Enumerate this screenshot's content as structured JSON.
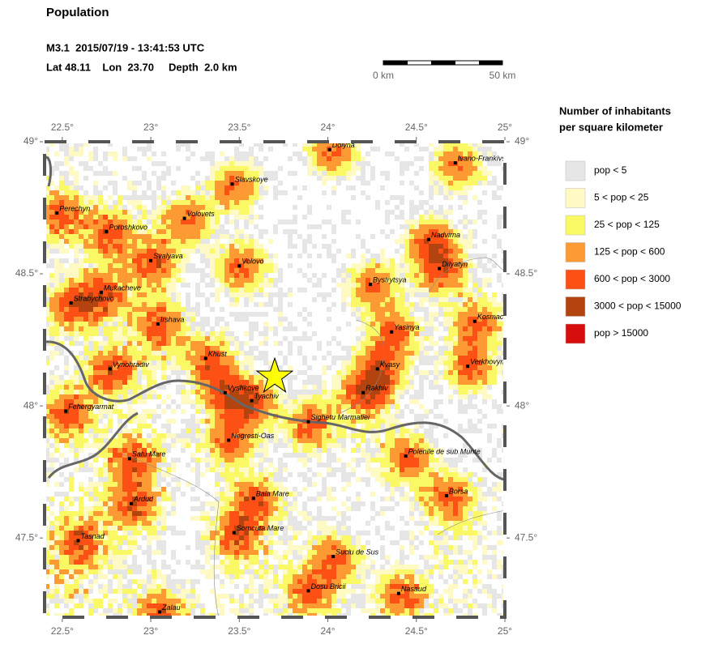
{
  "header": {
    "title": "Population",
    "event_line": "M3.1  2015/07/19 - 13:41:53 UTC",
    "location_line": "Lat 48.11    Lon  23.70     Depth  2.0 km"
  },
  "scale_bar": {
    "labels": [
      "0 km",
      "50 km"
    ]
  },
  "legend": {
    "title_lines": [
      "Number of inhabitants",
      "per square kilometer"
    ],
    "items": [
      {
        "label": "pop < 5",
        "color": "#e6e6e6"
      },
      {
        "label": "5 < pop < 25",
        "color": "#fffac4"
      },
      {
        "label": "25 < pop < 125",
        "color": "#fbf865"
      },
      {
        "label": "125 < pop < 600",
        "color": "#fd9a34"
      },
      {
        "label": "600 < pop < 3000",
        "color": "#fc5014"
      },
      {
        "label": "3000 < pop < 15000",
        "color": "#b4440f"
      },
      {
        "label": "pop > 15000",
        "color": "#d70e0e"
      }
    ]
  },
  "map": {
    "xlim": [
      22.4,
      25.0
    ],
    "ylim": [
      47.2,
      49.0
    ],
    "xticks": [
      {
        "value": 22.5,
        "label": "22.5°"
      },
      {
        "value": 23,
        "label": "23°"
      },
      {
        "value": 23.5,
        "label": "23.5°"
      },
      {
        "value": 24,
        "label": "24°"
      },
      {
        "value": 24.5,
        "label": "24.5°"
      },
      {
        "value": 25,
        "label": "25°"
      }
    ],
    "yticks": [
      {
        "value": 47.5,
        "label": "47.5°"
      },
      {
        "value": 48,
        "label": "48°"
      },
      {
        "value": 48.5,
        "label": "48.5°"
      },
      {
        "value": 49,
        "label": "49°"
      }
    ],
    "epicenter": {
      "lon": 23.7,
      "lat": 48.11
    },
    "cities": [
      {
        "name": "Dolyna",
        "lon": 24.01,
        "lat": 48.97
      },
      {
        "name": "Ivano-Frankivsk",
        "lon": 24.72,
        "lat": 48.92
      },
      {
        "name": "Slavskoye",
        "lon": 23.46,
        "lat": 48.84
      },
      {
        "name": "Perechyn",
        "lon": 22.47,
        "lat": 48.73
      },
      {
        "name": "Poroshkovo",
        "lon": 22.75,
        "lat": 48.66
      },
      {
        "name": "Volovets",
        "lon": 23.19,
        "lat": 48.71
      },
      {
        "name": "Svalyava",
        "lon": 23.0,
        "lat": 48.55
      },
      {
        "name": "Volovo",
        "lon": 23.5,
        "lat": 48.53
      },
      {
        "name": "Nadvirna",
        "lon": 24.57,
        "lat": 48.63
      },
      {
        "name": "Dilyatyn",
        "lon": 24.63,
        "lat": 48.52
      },
      {
        "name": "Mukacheve",
        "lon": 22.72,
        "lat": 48.43
      },
      {
        "name": "Bystrytsya",
        "lon": 24.24,
        "lat": 48.46
      },
      {
        "name": "Strabychovo",
        "lon": 22.55,
        "lat": 48.39
      },
      {
        "name": "Kosmach",
        "lon": 24.83,
        "lat": 48.32
      },
      {
        "name": "Irshava",
        "lon": 23.04,
        "lat": 48.31
      },
      {
        "name": "Yasinya",
        "lon": 24.36,
        "lat": 48.28
      },
      {
        "name": "Khust",
        "lon": 23.31,
        "lat": 48.18
      },
      {
        "name": "Verkhovyna",
        "lon": 24.79,
        "lat": 48.15
      },
      {
        "name": "Vynohradiv",
        "lon": 22.77,
        "lat": 48.14
      },
      {
        "name": "Kvasy",
        "lon": 24.28,
        "lat": 48.14
      },
      {
        "name": "Rakhiv",
        "lon": 24.2,
        "lat": 48.05
      },
      {
        "name": "Vyshkove",
        "lon": 23.42,
        "lat": 48.05
      },
      {
        "name": "Tyachiv",
        "lon": 23.57,
        "lat": 48.02
      },
      {
        "name": "Fehergyarmat",
        "lon": 22.52,
        "lat": 47.98
      },
      {
        "name": "Sighetu Marmatiei",
        "lon": 23.89,
        "lat": 47.94
      },
      {
        "name": "Negresti-Oas",
        "lon": 23.44,
        "lat": 47.87
      },
      {
        "name": "Polenile de sub Munte",
        "lon": 24.44,
        "lat": 47.81
      },
      {
        "name": "Satu Mare",
        "lon": 22.88,
        "lat": 47.8
      },
      {
        "name": "Baia Mare",
        "lon": 23.58,
        "lat": 47.65
      },
      {
        "name": "Borsa",
        "lon": 24.67,
        "lat": 47.66
      },
      {
        "name": "Ardud",
        "lon": 22.89,
        "lat": 47.63
      },
      {
        "name": "Somcuta Mare",
        "lon": 23.47,
        "lat": 47.52
      },
      {
        "name": "Tasnad",
        "lon": 22.59,
        "lat": 47.49
      },
      {
        "name": "Suciu de Sus",
        "lon": 24.03,
        "lat": 47.43
      },
      {
        "name": "Dosu Bricii",
        "lon": 23.89,
        "lat": 47.3
      },
      {
        "name": "Nasaud",
        "lon": 24.4,
        "lat": 47.29
      },
      {
        "name": "Zalau",
        "lon": 23.05,
        "lat": 47.22
      }
    ]
  }
}
